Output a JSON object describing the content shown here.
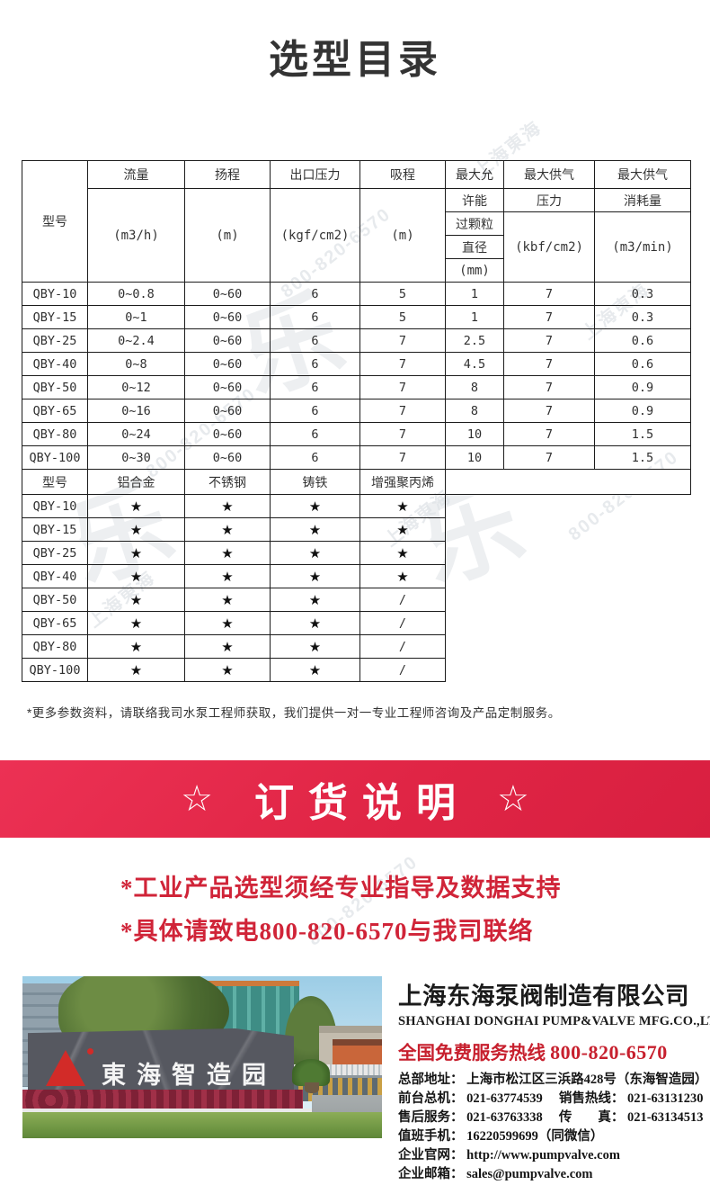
{
  "page": {
    "title": "选型目录"
  },
  "watermark": {
    "text1": "上海東海",
    "text2": "800-820-6570",
    "logo_glyph": "乐"
  },
  "spec_table": {
    "header": {
      "h_model": "型号",
      "h_flow": "流量",
      "u_flow": "(m3/h)",
      "h_lift": "扬程",
      "u_lift": "(m)",
      "h_outlet": "出口压力",
      "u_outlet": "(kgf/cm2)",
      "h_suction": "吸程",
      "u_suction": "(m)",
      "h_particle_a": "最大允",
      "h_particle_b": "许能",
      "h_particle_c": "过颗粒",
      "h_particle_d": "直径",
      "h_particle_u": "(mm)",
      "h_air_a": "最大供气",
      "h_air_b": "压力",
      "u_air": "(kbf/cm2)",
      "h_cons_a": "最大供气",
      "h_cons_b": "消耗量",
      "u_cons": "(m3/min)"
    },
    "rows": [
      [
        "QBY-10",
        "0~0.8",
        "0~60",
        "6",
        "5",
        "1",
        "7",
        "0.3"
      ],
      [
        "QBY-15",
        "0~1",
        "0~60",
        "6",
        "5",
        "1",
        "7",
        "0.3"
      ],
      [
        "QBY-25",
        "0~2.4",
        "0~60",
        "6",
        "7",
        "2.5",
        "7",
        "0.6"
      ],
      [
        "QBY-40",
        "0~8",
        "0~60",
        "6",
        "7",
        "4.5",
        "7",
        "0.6"
      ],
      [
        "QBY-50",
        "0~12",
        "0~60",
        "6",
        "7",
        "8",
        "7",
        "0.9"
      ],
      [
        "QBY-65",
        "0~16",
        "0~60",
        "6",
        "7",
        "8",
        "7",
        "0.9"
      ],
      [
        "QBY-80",
        "0~24",
        "0~60",
        "6",
        "7",
        "10",
        "7",
        "1.5"
      ],
      [
        "QBY-100",
        "0~30",
        "0~60",
        "6",
        "7",
        "10",
        "7",
        "1.5"
      ]
    ]
  },
  "material_table": {
    "header": {
      "c0": "型号",
      "c1": "铝合金",
      "c2": "不锈钢",
      "c3": "铸铁",
      "c4": "增强聚丙烯"
    },
    "rows": [
      [
        "QBY-10",
        "★",
        "★",
        "★",
        "★"
      ],
      [
        "QBY-15",
        "★",
        "★",
        "★",
        "★"
      ],
      [
        "QBY-25",
        "★",
        "★",
        "★",
        "★"
      ],
      [
        "QBY-40",
        "★",
        "★",
        "★",
        "★"
      ],
      [
        "QBY-50",
        "★",
        "★",
        "★",
        "/"
      ],
      [
        "QBY-65",
        "★",
        "★",
        "★",
        "/"
      ],
      [
        "QBY-80",
        "★",
        "★",
        "★",
        "/"
      ],
      [
        "QBY-100",
        "★",
        "★",
        "★",
        "/"
      ]
    ]
  },
  "note": "*更多参数资料，请联络我司水泵工程师获取，我们提供一对一专业工程师咨询及产品定制服务。",
  "banner": {
    "star_left": "☆",
    "title": "订货说明",
    "star_right": "☆"
  },
  "highlights": {
    "line1": "*工业产品选型须经专业指导及数据支持",
    "line2": "*具体请致电800-820-6570与我司联络",
    "color": "#d02438"
  },
  "footer": {
    "photo_sign_text": "東海智造园",
    "company_cn": "上海东海泵阀制造有限公司",
    "company_en": "SHANGHAI DONGHAI PUMP&VALVE MFG.CO.,LTD.",
    "hotline_label": "全国免费服务热线",
    "hotline_number": "800-820-6570",
    "contacts": [
      "总部地址： 上海市松江区三浜路428号（东海智造园）",
      "前台总机： 021-63774539　 销售热线： 021-63131230",
      "售后服务： 021-63763338　 传　　真： 021-63134513",
      "值班手机： 16220599699（同微信）",
      "企业官网： http://www.pumpvalve.com",
      "企业邮箱： sales@pumpvalve.com"
    ]
  }
}
